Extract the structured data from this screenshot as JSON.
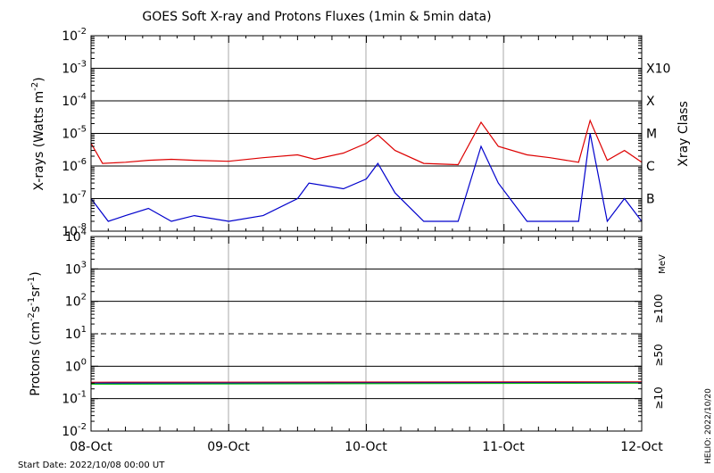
{
  "title": "GOES Soft X-ray and Protons Fluxes   (1min & 5min data)",
  "footer": {
    "start_date": "Start Date: 2022/10/08 00:00 UT",
    "helio": "HELIO: 2022/10/20"
  },
  "x_ticks": [
    "08-Oct",
    "09-Oct",
    "10-Oct",
    "11-Oct",
    "12-Oct"
  ],
  "colors": {
    "long_xray": "#dd0000",
    "short_xray": "#0000cc",
    "p10": "#dd0000",
    "p50": "#0000cc",
    "p100": "#00bb00"
  },
  "chart_data": [
    {
      "type": "line",
      "panel": "xray",
      "ylabel": "X-rays (Watts m^-2)",
      "yscale": "log",
      "ylim": [
        1e-08,
        0.01
      ],
      "y_ticks": [
        "10^-8",
        "10^-7",
        "10^-6",
        "10^-5",
        "10^-4",
        "10^-3",
        "10^-2"
      ],
      "xlim_days": [
        "2022-10-08",
        "2022-10-12"
      ],
      "right_axis": {
        "label": "Xray Class",
        "classes": [
          "B",
          "C",
          "M",
          "X",
          "X10"
        ]
      },
      "series": [
        {
          "color": "#dd0000",
          "x": [
            "2022-10-08 00:00",
            "2022-10-08 02:00",
            "2022-10-08 06:00",
            "2022-10-08 10:00",
            "2022-10-08 14:00",
            "2022-10-08 18:00",
            "2022-10-09 00:00",
            "2022-10-09 06:00",
            "2022-10-09 12:00",
            "2022-10-09 15:00",
            "2022-10-09 20:00",
            "2022-10-10 00:00",
            "2022-10-10 02:00",
            "2022-10-10 05:00",
            "2022-10-10 10:00",
            "2022-10-10 16:00",
            "2022-10-10 20:00",
            "2022-10-10 23:00",
            "2022-10-11 04:00",
            "2022-10-11 08:00",
            "2022-10-11 13:00",
            "2022-10-11 15:00",
            "2022-10-11 18:00",
            "2022-10-11 21:00",
            "2022-10-12 00:00"
          ],
          "values": [
            5e-06,
            1.2e-06,
            1.3e-06,
            1.5e-06,
            1.6e-06,
            1.5e-06,
            1.4e-06,
            1.8e-06,
            2.2e-06,
            1.6e-06,
            2.5e-06,
            5e-06,
            9e-06,
            3e-06,
            1.2e-06,
            1.1e-06,
            2.2e-05,
            4e-06,
            2.2e-06,
            1.8e-06,
            1.3e-06,
            2.5e-05,
            1.5e-06,
            3e-06,
            1.3e-06
          ]
        },
        {
          "color": "#0000cc",
          "x": [
            "2022-10-08 00:00",
            "2022-10-08 03:00",
            "2022-10-08 06:00",
            "2022-10-08 10:00",
            "2022-10-08 14:00",
            "2022-10-08 18:00",
            "2022-10-09 00:00",
            "2022-10-09 06:00",
            "2022-10-09 12:00",
            "2022-10-09 14:00",
            "2022-10-09 20:00",
            "2022-10-10 00:00",
            "2022-10-10 02:00",
            "2022-10-10 05:00",
            "2022-10-10 10:00",
            "2022-10-10 16:00",
            "2022-10-10 20:00",
            "2022-10-10 23:00",
            "2022-10-11 04:00",
            "2022-10-11 08:00",
            "2022-10-11 13:00",
            "2022-10-11 15:00",
            "2022-10-11 18:00",
            "2022-10-11 21:00",
            "2022-10-12 00:00"
          ],
          "values": [
            1e-07,
            2e-08,
            3e-08,
            5e-08,
            2e-08,
            3e-08,
            2e-08,
            3e-08,
            1e-07,
            3e-07,
            2e-07,
            4e-07,
            1.2e-06,
            1.5e-07,
            2e-08,
            2e-08,
            4e-06,
            3e-07,
            2e-08,
            2e-08,
            2e-08,
            1e-05,
            2e-08,
            1e-07,
            2e-08
          ]
        }
      ]
    },
    {
      "type": "line",
      "panel": "protons",
      "ylabel": "Protons (cm^-2 s^-1 sr^-1)",
      "yscale": "log",
      "ylim": [
        0.01,
        10000
      ],
      "y_ticks": [
        "10^-2",
        "10^-1",
        "10^0",
        "10^1",
        "10^2",
        "10^3",
        "10^4"
      ],
      "threshold_line": 10,
      "right_axis": {
        "label": "MeV",
        "channels": [
          "≥10",
          "≥50",
          "≥100"
        ]
      },
      "series": [
        {
          "color": "#dd0000",
          "x": [
            "2022-10-08 00:00",
            "2022-10-12 00:00"
          ],
          "values": [
            0.32,
            0.33
          ]
        },
        {
          "color": "#0000cc",
          "x": [
            "2022-10-08 00:00",
            "2022-10-12 00:00"
          ],
          "values": [
            0.3,
            0.31
          ]
        },
        {
          "color": "#00bb00",
          "x": [
            "2022-10-08 00:00",
            "2022-10-12 00:00"
          ],
          "values": [
            0.28,
            0.3
          ]
        }
      ]
    }
  ]
}
